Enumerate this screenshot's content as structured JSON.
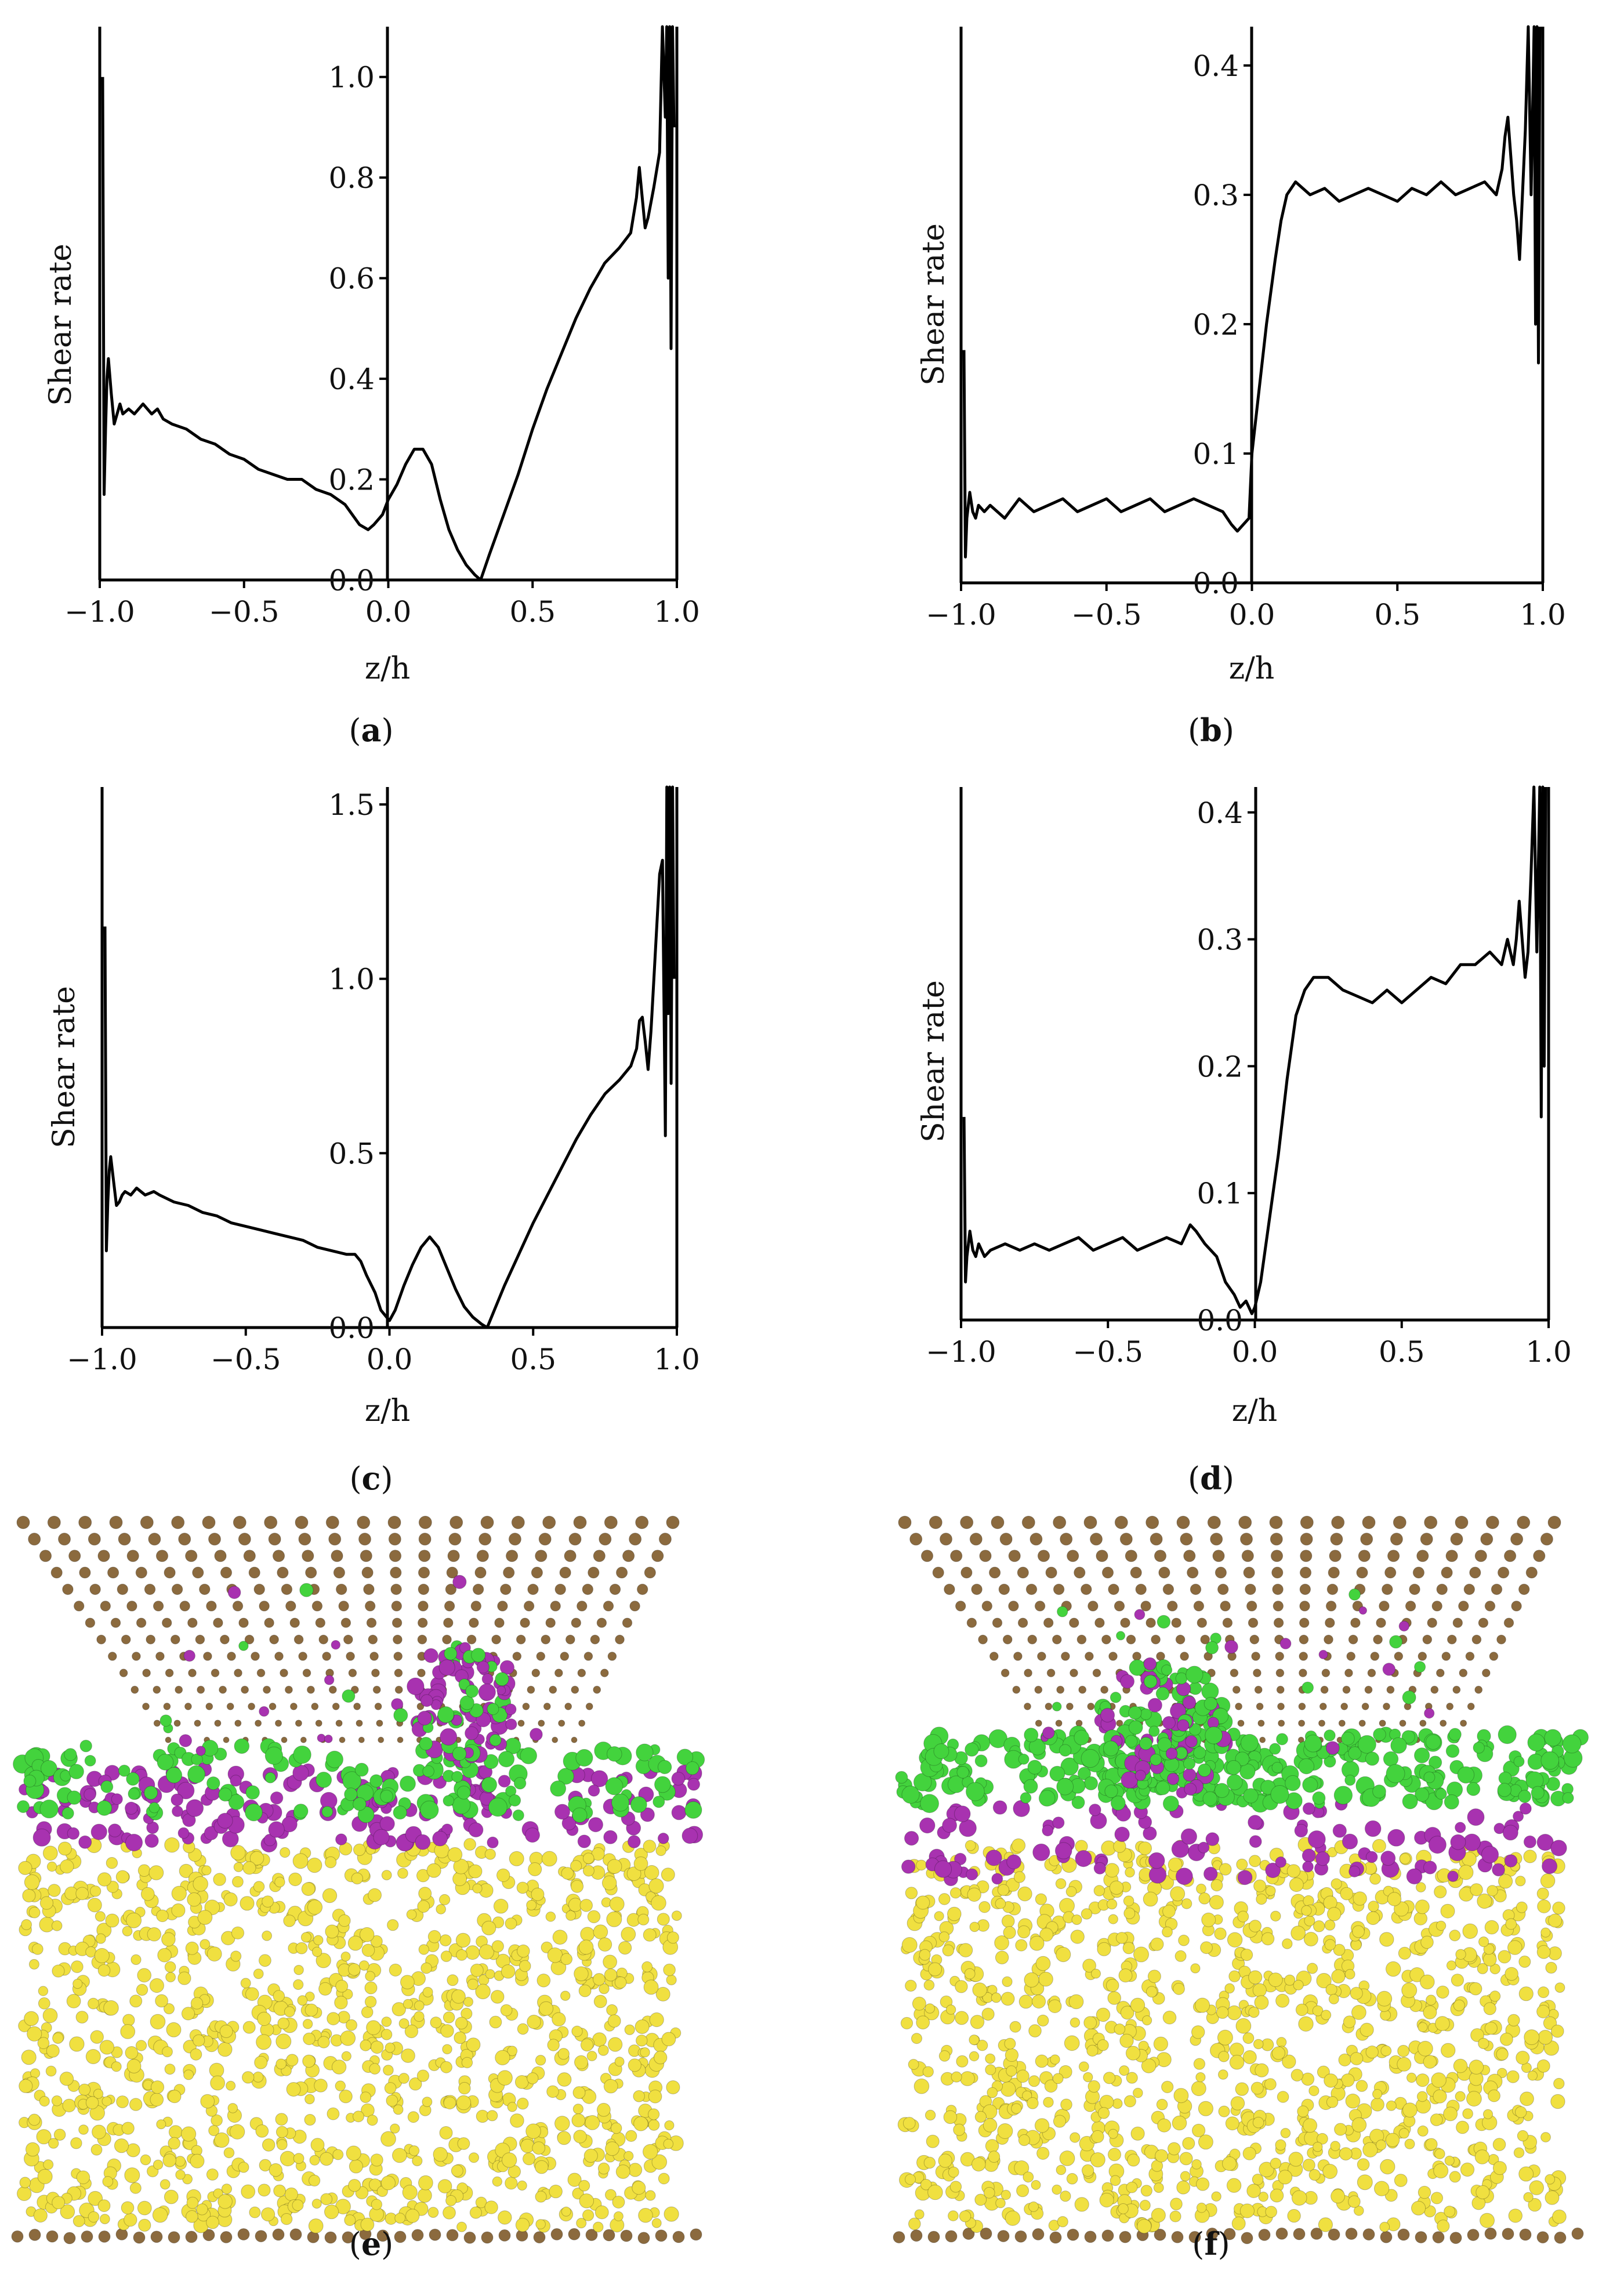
{
  "figure": {
    "captions": [
      {
        "pre": "(",
        "letter": "a",
        "post": ")"
      },
      {
        "pre": "(",
        "letter": "b",
        "post": ")"
      },
      {
        "pre": "(",
        "letter": "c",
        "post": ")"
      },
      {
        "pre": "(",
        "letter": "d",
        "post": ")"
      },
      {
        "pre": "(",
        "letter": "e",
        "post": ")"
      },
      {
        "pre": "(",
        "letter": "f",
        "post": ")"
      }
    ],
    "colors": {
      "line": "#000000",
      "wall": "#8b6a3e",
      "bulk": "#f0e040",
      "green": "#43d33d",
      "magenta": "#a832b0"
    },
    "snapshots": [
      {
        "panel": "e",
        "description": "molecular snapshot",
        "legend_atoms": [
          "wall",
          "bulk",
          "green",
          "magenta"
        ]
      },
      {
        "panel": "f",
        "description": "molecular snapshot",
        "legend_atoms": [
          "wall",
          "bulk",
          "green",
          "magenta"
        ]
      }
    ]
  },
  "chart_data": [
    {
      "panel": "a",
      "type": "line",
      "xlabel": "z/h",
      "ylabel": "Shear rate",
      "xlim": [
        -1.0,
        1.0
      ],
      "ylim": [
        0.0,
        1.1
      ],
      "xticks": [
        -1.0,
        -0.5,
        0.0,
        0.5,
        1.0
      ],
      "xtick_labels": [
        "−1.0",
        "−0.5",
        "0.0",
        "0.5",
        "1.0"
      ],
      "yticks": [
        0.0,
        0.2,
        0.4,
        0.6,
        0.8,
        1.0
      ],
      "ytick_labels": [
        "0.0",
        "0.2",
        "0.4",
        "0.6",
        "0.8",
        "1.0"
      ],
      "series": [
        {
          "name": "shear rate",
          "x": [
            -0.99,
            -0.985,
            -0.98,
            -0.975,
            -0.97,
            -0.96,
            -0.95,
            -0.94,
            -0.93,
            -0.92,
            -0.9,
            -0.88,
            -0.85,
            -0.82,
            -0.8,
            -0.78,
            -0.75,
            -0.7,
            -0.65,
            -0.6,
            -0.55,
            -0.5,
            -0.45,
            -0.4,
            -0.35,
            -0.3,
            -0.25,
            -0.2,
            -0.15,
            -0.1,
            -0.07,
            -0.05,
            -0.02,
            0.0,
            0.03,
            0.06,
            0.09,
            0.12,
            0.15,
            0.18,
            0.21,
            0.24,
            0.27,
            0.3,
            0.32,
            0.35,
            0.4,
            0.45,
            0.5,
            0.55,
            0.6,
            0.65,
            0.7,
            0.75,
            0.8,
            0.84,
            0.86,
            0.87,
            0.88,
            0.89,
            0.9,
            0.92,
            0.94,
            0.95,
            0.96,
            0.965,
            0.97,
            0.975,
            0.98,
            0.985,
            0.99
          ],
          "y": [
            1.0,
            0.17,
            0.3,
            0.4,
            0.44,
            0.37,
            0.31,
            0.33,
            0.35,
            0.33,
            0.34,
            0.33,
            0.35,
            0.33,
            0.34,
            0.32,
            0.31,
            0.3,
            0.28,
            0.27,
            0.25,
            0.24,
            0.22,
            0.21,
            0.2,
            0.2,
            0.18,
            0.17,
            0.15,
            0.11,
            0.1,
            0.11,
            0.13,
            0.16,
            0.19,
            0.23,
            0.26,
            0.26,
            0.23,
            0.16,
            0.1,
            0.06,
            0.03,
            0.01,
            0.0,
            0.05,
            0.13,
            0.21,
            0.3,
            0.38,
            0.45,
            0.52,
            0.58,
            0.63,
            0.66,
            0.69,
            0.76,
            0.82,
            0.76,
            0.7,
            0.72,
            0.78,
            0.85,
            1.1,
            0.92,
            1.1,
            0.6,
            1.1,
            0.46,
            1.1,
            0.9
          ]
        }
      ]
    },
    {
      "panel": "b",
      "type": "line",
      "xlabel": "z/h",
      "ylabel": "Shear rate",
      "xlim": [
        -1.0,
        1.0
      ],
      "ylim": [
        0.0,
        0.43
      ],
      "xticks": [
        -1.0,
        -0.5,
        0.0,
        0.5,
        1.0
      ],
      "xtick_labels": [
        "−1.0",
        "−0.5",
        "0.0",
        "0.5",
        "1.0"
      ],
      "yticks": [
        0.0,
        0.1,
        0.2,
        0.3,
        0.4
      ],
      "ytick_labels": [
        "0.0",
        "0.1",
        "0.2",
        "0.3",
        "0.4"
      ],
      "series": [
        {
          "name": "shear rate",
          "x": [
            -0.99,
            -0.985,
            -0.98,
            -0.975,
            -0.97,
            -0.96,
            -0.95,
            -0.94,
            -0.92,
            -0.9,
            -0.85,
            -0.8,
            -0.75,
            -0.7,
            -0.65,
            -0.6,
            -0.55,
            -0.5,
            -0.45,
            -0.4,
            -0.35,
            -0.3,
            -0.25,
            -0.2,
            -0.15,
            -0.1,
            -0.07,
            -0.05,
            -0.03,
            -0.01,
            0.0,
            0.02,
            0.05,
            0.08,
            0.1,
            0.12,
            0.15,
            0.2,
            0.25,
            0.3,
            0.35,
            0.4,
            0.45,
            0.5,
            0.55,
            0.6,
            0.65,
            0.7,
            0.75,
            0.8,
            0.84,
            0.86,
            0.87,
            0.88,
            0.89,
            0.9,
            0.91,
            0.92,
            0.94,
            0.95,
            0.96,
            0.97,
            0.975,
            0.98,
            0.985,
            0.99
          ],
          "y": [
            0.18,
            0.02,
            0.05,
            0.06,
            0.07,
            0.055,
            0.05,
            0.06,
            0.055,
            0.06,
            0.05,
            0.065,
            0.055,
            0.06,
            0.065,
            0.055,
            0.06,
            0.065,
            0.055,
            0.06,
            0.065,
            0.055,
            0.06,
            0.065,
            0.06,
            0.055,
            0.045,
            0.04,
            0.045,
            0.05,
            0.1,
            0.14,
            0.2,
            0.25,
            0.28,
            0.3,
            0.31,
            0.3,
            0.305,
            0.295,
            0.3,
            0.305,
            0.3,
            0.295,
            0.305,
            0.3,
            0.31,
            0.3,
            0.305,
            0.31,
            0.3,
            0.32,
            0.345,
            0.36,
            0.33,
            0.3,
            0.28,
            0.25,
            0.35,
            0.43,
            0.3,
            0.43,
            0.2,
            0.43,
            0.17,
            0.43
          ]
        }
      ]
    },
    {
      "panel": "c",
      "type": "line",
      "xlabel": "z/h",
      "ylabel": "Shear rate",
      "xlim": [
        -1.0,
        1.0
      ],
      "ylim": [
        0.0,
        1.55
      ],
      "xticks": [
        -1.0,
        -0.5,
        0.0,
        0.5,
        1.0
      ],
      "xtick_labels": [
        "−1.0",
        "−0.5",
        "0.0",
        "0.5",
        "1.0"
      ],
      "yticks": [
        0.0,
        0.5,
        1.0,
        1.5
      ],
      "ytick_labels": [
        "0.0",
        "0.5",
        "1.0",
        "1.5"
      ],
      "series": [
        {
          "name": "shear rate",
          "x": [
            -0.99,
            -0.985,
            -0.98,
            -0.975,
            -0.97,
            -0.96,
            -0.95,
            -0.94,
            -0.93,
            -0.92,
            -0.9,
            -0.88,
            -0.85,
            -0.82,
            -0.8,
            -0.75,
            -0.7,
            -0.65,
            -0.6,
            -0.55,
            -0.5,
            -0.45,
            -0.4,
            -0.35,
            -0.3,
            -0.25,
            -0.2,
            -0.15,
            -0.12,
            -0.1,
            -0.08,
            -0.05,
            -0.03,
            -0.01,
            0.0,
            0.02,
            0.05,
            0.08,
            0.11,
            0.14,
            0.17,
            0.2,
            0.23,
            0.26,
            0.29,
            0.32,
            0.34,
            0.37,
            0.4,
            0.45,
            0.5,
            0.55,
            0.6,
            0.65,
            0.7,
            0.75,
            0.8,
            0.84,
            0.86,
            0.87,
            0.88,
            0.89,
            0.9,
            0.91,
            0.92,
            0.94,
            0.95,
            0.96,
            0.965,
            0.97,
            0.975,
            0.98,
            0.985,
            0.99
          ],
          "y": [
            1.15,
            0.22,
            0.36,
            0.45,
            0.49,
            0.42,
            0.35,
            0.36,
            0.38,
            0.39,
            0.38,
            0.4,
            0.38,
            0.39,
            0.38,
            0.36,
            0.35,
            0.33,
            0.32,
            0.3,
            0.29,
            0.28,
            0.27,
            0.26,
            0.25,
            0.23,
            0.22,
            0.21,
            0.21,
            0.19,
            0.15,
            0.1,
            0.05,
            0.03,
            0.02,
            0.05,
            0.12,
            0.18,
            0.23,
            0.26,
            0.23,
            0.17,
            0.11,
            0.06,
            0.03,
            0.01,
            0.0,
            0.06,
            0.12,
            0.21,
            0.3,
            0.38,
            0.46,
            0.54,
            0.61,
            0.67,
            0.71,
            0.75,
            0.8,
            0.88,
            0.89,
            0.82,
            0.74,
            0.85,
            1.0,
            1.3,
            1.34,
            0.55,
            1.55,
            0.9,
            1.55,
            0.7,
            1.55,
            1.0
          ]
        }
      ]
    },
    {
      "panel": "d",
      "type": "line",
      "xlabel": "z/h",
      "ylabel": "Shear rate",
      "xlim": [
        -1.0,
        1.0
      ],
      "ylim": [
        0.0,
        0.42
      ],
      "xticks": [
        -1.0,
        -0.5,
        0.0,
        0.5,
        1.0
      ],
      "xtick_labels": [
        "−1.0",
        "−0.5",
        "0.0",
        "0.5",
        "1.0"
      ],
      "yticks": [
        0.0,
        0.1,
        0.2,
        0.3,
        0.4
      ],
      "ytick_labels": [
        "0.0",
        "0.1",
        "0.2",
        "0.3",
        "0.4"
      ],
      "series": [
        {
          "name": "shear rate",
          "x": [
            -0.99,
            -0.985,
            -0.98,
            -0.975,
            -0.97,
            -0.96,
            -0.95,
            -0.94,
            -0.92,
            -0.9,
            -0.85,
            -0.8,
            -0.75,
            -0.7,
            -0.65,
            -0.6,
            -0.55,
            -0.5,
            -0.45,
            -0.4,
            -0.35,
            -0.3,
            -0.25,
            -0.22,
            -0.2,
            -0.17,
            -0.13,
            -0.1,
            -0.07,
            -0.05,
            -0.03,
            -0.01,
            0.0,
            0.02,
            0.05,
            0.08,
            0.11,
            0.14,
            0.17,
            0.2,
            0.25,
            0.3,
            0.35,
            0.4,
            0.45,
            0.5,
            0.55,
            0.6,
            0.65,
            0.7,
            0.75,
            0.8,
            0.84,
            0.86,
            0.88,
            0.89,
            0.9,
            0.91,
            0.92,
            0.93,
            0.94,
            0.95,
            0.96,
            0.97,
            0.975,
            0.98,
            0.985,
            0.99
          ],
          "y": [
            0.16,
            0.03,
            0.05,
            0.06,
            0.07,
            0.055,
            0.05,
            0.06,
            0.05,
            0.055,
            0.06,
            0.055,
            0.06,
            0.055,
            0.06,
            0.065,
            0.055,
            0.06,
            0.065,
            0.055,
            0.06,
            0.065,
            0.06,
            0.075,
            0.07,
            0.06,
            0.05,
            0.03,
            0.02,
            0.01,
            0.015,
            0.005,
            0.01,
            0.03,
            0.08,
            0.13,
            0.19,
            0.24,
            0.26,
            0.27,
            0.27,
            0.26,
            0.255,
            0.25,
            0.26,
            0.25,
            0.26,
            0.27,
            0.265,
            0.28,
            0.28,
            0.29,
            0.28,
            0.3,
            0.28,
            0.3,
            0.33,
            0.3,
            0.27,
            0.29,
            0.35,
            0.42,
            0.29,
            0.42,
            0.16,
            0.42,
            0.2,
            0.42
          ]
        }
      ]
    }
  ]
}
